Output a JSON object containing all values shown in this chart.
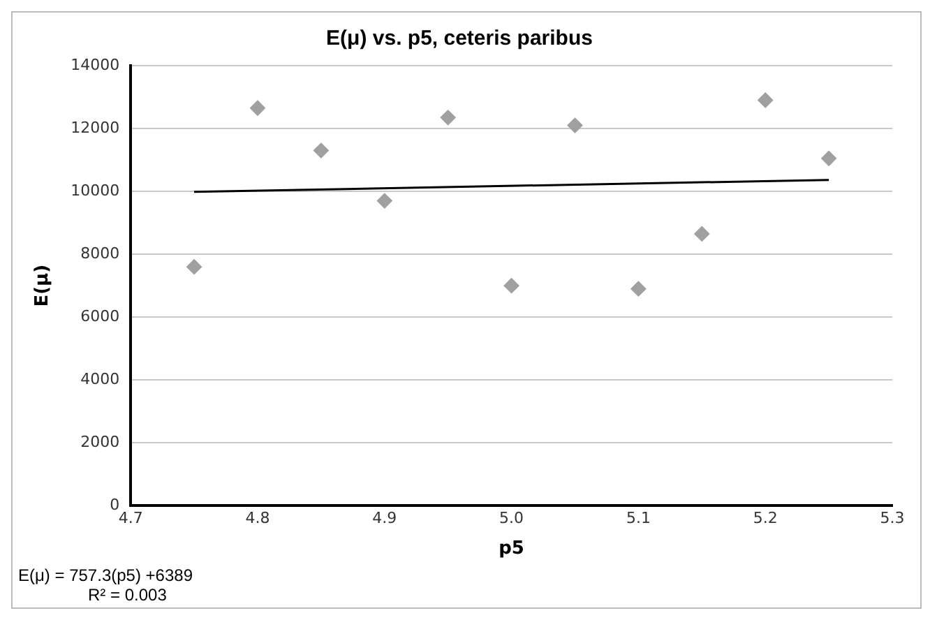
{
  "chart_data": {
    "type": "scatter",
    "title": "E(μ) vs. p5, ceteris paribus",
    "xlabel": "p5",
    "ylabel": "E(μ)",
    "x": [
      4.75,
      4.8,
      4.85,
      4.9,
      4.95,
      5.0,
      5.05,
      5.1,
      5.15,
      5.2,
      5.25
    ],
    "series": [
      {
        "color": "#a0a0a0",
        "values": [
          7600,
          12650,
          11300,
          9700,
          12350,
          7000,
          12100,
          6900,
          8650,
          12900,
          11050
        ]
      },
      {
        "type": "line",
        "color": "#000000",
        "x": [
          4.75,
          5.25
        ],
        "values": [
          9986,
          10365
        ],
        "marker": "none"
      }
    ],
    "marker": "diamond",
    "xlim": [
      4.7,
      5.3
    ],
    "xticks": [
      4.7,
      4.8,
      4.9,
      {
        "value": 5.0,
        "label": "5.0"
      },
      5.1,
      5.2,
      5.3
    ],
    "ylim": [
      0,
      14000
    ],
    "yticks": [
      0,
      2000,
      4000,
      6000,
      8000,
      10000,
      12000,
      14000
    ],
    "grid": "y",
    "legend": false,
    "annotations": [
      "E(μ) = 757.3(p5) +6389",
      "R² = 0.003"
    ]
  }
}
